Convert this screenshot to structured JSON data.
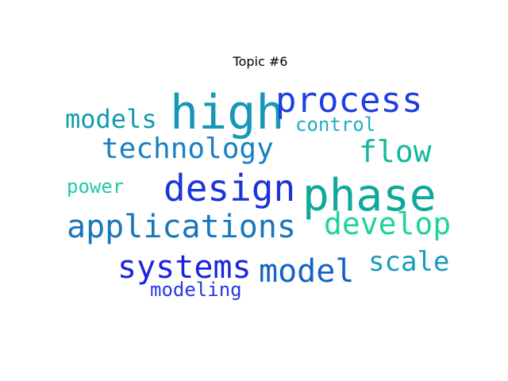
{
  "title": "Topic #6",
  "words": [
    {
      "text": "high",
      "color": "#1597b7"
    },
    {
      "text": "phase",
      "color": "#0fa89a"
    },
    {
      "text": "process",
      "color": "#1d3fe0"
    },
    {
      "text": "design",
      "color": "#1b33d8"
    },
    {
      "text": "applications",
      "color": "#1677c0"
    },
    {
      "text": "technology",
      "color": "#1a80c2"
    },
    {
      "text": "models",
      "color": "#139aad"
    },
    {
      "text": "flow",
      "color": "#14b8a0"
    },
    {
      "text": "develop",
      "color": "#1fd49b"
    },
    {
      "text": "systems",
      "color": "#1a23e0"
    },
    {
      "text": "model",
      "color": "#1562c4"
    },
    {
      "text": "scale",
      "color": "#149dbb"
    },
    {
      "text": "control",
      "color": "#1bb0c0"
    },
    {
      "text": "power",
      "color": "#22c9a6"
    },
    {
      "text": "modeling",
      "color": "#2836e3"
    }
  ]
}
